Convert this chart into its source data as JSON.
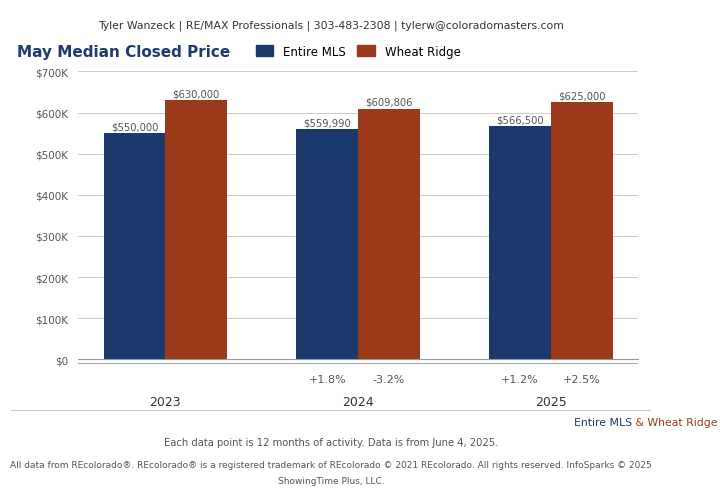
{
  "header_text": "Tyler Wanzeck | RE/MAX Professionals | 303-483-2308 | tylerw@coloradomasters.com",
  "title": "May Median Closed Price",
  "title_color": "#1F3A6E",
  "background_color": "#FFFFFF",
  "header_bg_color": "#EEEEEE",
  "years": [
    "2023",
    "2024",
    "2025"
  ],
  "mls_values": [
    550000,
    559990,
    566500
  ],
  "wr_values": [
    630000,
    609806,
    625000
  ],
  "mls_labels": [
    "$550,000",
    "$559,990",
    "$566,500"
  ],
  "wr_labels": [
    "$630,000",
    "$609,806",
    "$625,000"
  ],
  "mls_color": "#1B3A6B",
  "wr_color": "#9B3A1A",
  "pct_changes": [
    [
      "+1.8%",
      "-3.2%"
    ],
    [
      "+1.2%",
      "+2.5%"
    ]
  ],
  "ylim": [
    0,
    700000
  ],
  "yticks": [
    0,
    100000,
    200000,
    300000,
    400000,
    500000,
    600000,
    700000
  ],
  "legend_labels": [
    "Entire MLS",
    "Wheat Ridge"
  ],
  "footer_mls_text": "Entire MLS",
  "footer_wr_text": " & Wheat Ridge",
  "footer_line2": "Each data point is 12 months of activity. Data is from June 4, 2025.",
  "footer_line3": "All data from REcolorado®. REcolorado® is a registered trademark of REcolorado © 2021 REcolorado. All rights reserved. InfoSparks © 2025",
  "footer_line4": "ShowingTime Plus, LLC.",
  "bar_width": 0.32
}
